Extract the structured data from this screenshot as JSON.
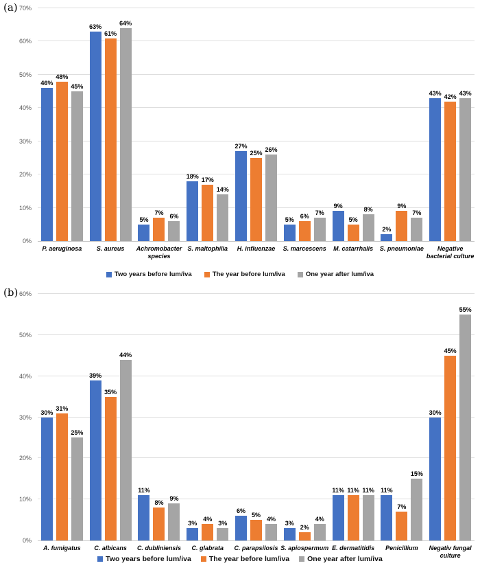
{
  "panels": [
    {
      "tag": "(a)"
    },
    {
      "tag": "(b)"
    }
  ],
  "colors": {
    "series_blue": "#4472C4",
    "series_orange": "#ED7D31",
    "series_gray": "#A5A5A5",
    "gridline": "#DEDEDE"
  },
  "chart_data": [
    {
      "type": "bar",
      "title": "",
      "xlabel": "",
      "ylabel": "",
      "ylim": [
        0,
        70
      ],
      "ytick_step": 10,
      "ytick_suffix": "%",
      "value_label_suffix": "%",
      "grid": true,
      "legend_position": "bottom",
      "categories": [
        "P. aeruginosa",
        "S. aureus",
        "Achromobacter species",
        "S. maltophilia",
        "H. influenzae",
        "S. marcescens",
        "M. catarrhalis",
        "S. pneumoniae",
        "Negative bacterial culture"
      ],
      "series": [
        {
          "name": "Two years before lum/iva",
          "color": "#4472C4",
          "values": [
            46,
            63,
            5,
            18,
            27,
            5,
            9,
            2,
            43
          ]
        },
        {
          "name": "The year before lum/iva",
          "color": "#ED7D31",
          "values": [
            48,
            61,
            7,
            17,
            25,
            6,
            5,
            9,
            42
          ]
        },
        {
          "name": "One year after lum/iva",
          "color": "#A5A5A5",
          "values": [
            45,
            64,
            6,
            14,
            26,
            7,
            8,
            7,
            43
          ]
        }
      ]
    },
    {
      "type": "bar",
      "title": "",
      "xlabel": "",
      "ylabel": "",
      "ylim": [
        0,
        60
      ],
      "ytick_step": 10,
      "ytick_suffix": "%",
      "value_label_suffix": "%",
      "grid": true,
      "legend_position": "bottom",
      "categories": [
        "A. fumigatus",
        "C. albicans",
        "C. dubliniensis",
        "C. glabrata",
        "C. parapsilosis",
        "S. apiospermum",
        "E. dermatitidis",
        "Penicillium",
        "Negativ fungal culture"
      ],
      "series": [
        {
          "name": "Two years before lum/iva",
          "color": "#4472C4",
          "values": [
            30,
            39,
            11,
            3,
            6,
            3,
            11,
            11,
            30
          ]
        },
        {
          "name": "The year before lum/iva",
          "color": "#ED7D31",
          "values": [
            31,
            35,
            8,
            4,
            5,
            2,
            11,
            7,
            45
          ]
        },
        {
          "name": "One year after lum/iva",
          "color": "#A5A5A5",
          "values": [
            25,
            44,
            9,
            3,
            4,
            4,
            11,
            15,
            55
          ]
        }
      ]
    }
  ]
}
